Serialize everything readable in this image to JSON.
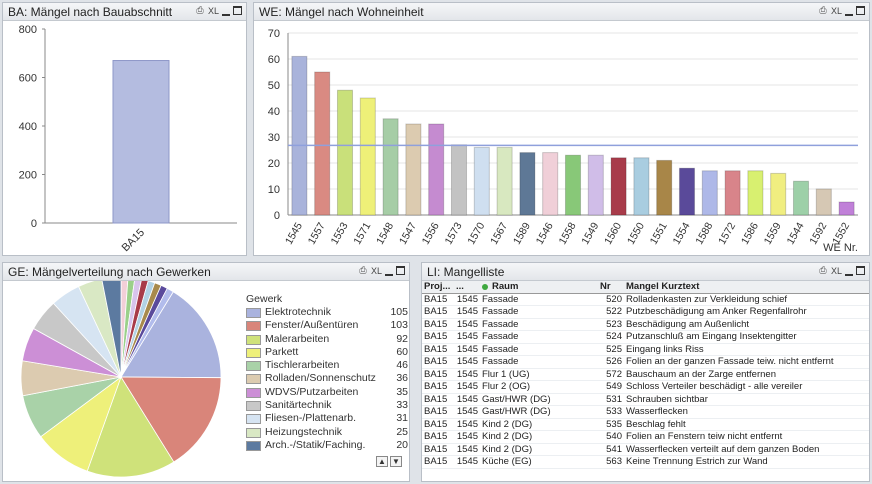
{
  "panels": {
    "ba": {
      "title": "BA: Mängel nach Bauabschnitt",
      "xl": "XL"
    },
    "we": {
      "title": "WE: Mängel nach Wohneinheit",
      "xl": "XL"
    },
    "ge": {
      "title": "GE: Mängelverteilung nach Gewerken",
      "xl": "XL"
    },
    "li": {
      "title": "LI: Mangelliste",
      "xl": "XL"
    }
  },
  "colors": {
    "bar_fill": "#b4bce0",
    "bar_stroke": "#8e97c8",
    "ref_line": "#8fa0dc",
    "grid": "#e4e4e4"
  },
  "chart_data": [
    {
      "type": "bar",
      "categories": [
        "BA15"
      ],
      "values": [
        670
      ],
      "ylim": [
        0,
        800
      ],
      "yticks": [
        0,
        200,
        400,
        600,
        800
      ]
    },
    {
      "type": "bar",
      "xlabel": "WE Nr.",
      "categories": [
        "1545",
        "1557",
        "1553",
        "1571",
        "1548",
        "1547",
        "1556",
        "1573",
        "1570",
        "1567",
        "1589",
        "1546",
        "1558",
        "1549",
        "1560",
        "1550",
        "1551",
        "1554",
        "1588",
        "1572",
        "1586",
        "1559",
        "1544",
        "1592",
        "1552"
      ],
      "values": [
        61,
        55,
        48,
        45,
        37,
        35,
        35,
        27,
        26,
        26,
        24,
        24,
        23,
        23,
        22,
        22,
        21,
        18,
        17,
        17,
        17,
        16,
        13,
        10,
        5
      ],
      "colors": [
        "#a9b3db",
        "#d98a82",
        "#c9e07a",
        "#eef078",
        "#a6cda6",
        "#dccbb0",
        "#c58bd0",
        "#c3c3c3",
        "#cfdff0",
        "#d8e8c0",
        "#5e7896",
        "#f0cfd8",
        "#88c878",
        "#d0bde8",
        "#a83b4a",
        "#a9cde0",
        "#a88648",
        "#5a4a9a",
        "#aeb8e8",
        "#d8848a",
        "#d8f070",
        "#f0ee80",
        "#9dd0a8",
        "#d6c8b4",
        "#c080d8"
      ],
      "reference_line": 26.8,
      "ylim": [
        0,
        70
      ],
      "yticks": [
        0,
        10,
        20,
        30,
        40,
        50,
        60,
        70
      ]
    },
    {
      "type": "pie",
      "legend_title": "Gewerk",
      "labels": [
        "Elektrotechnik",
        "Fenster/Außentüren",
        "Malerarbeiten",
        "Parkett",
        "Tischlerarbeiten",
        "Rolladen/Sonnenschutz",
        "WDVS/Putzarbeiten",
        "Sanitärtechnik",
        "Fliesen-/Plattenarb.",
        "Heizungstechnik",
        "Arch.-/Statik/Faching."
      ],
      "values": [
        105,
        103,
        92,
        60,
        46,
        36,
        35,
        33,
        31,
        25,
        20
      ],
      "colors": [
        "#aab3de",
        "#d9857a",
        "#cfe27a",
        "#eef07a",
        "#a9d2a8",
        "#dccbb0",
        "#cc8fd6",
        "#c8c8c8",
        "#d6e4f2",
        "#d9e8c4",
        "#5c7aa0"
      ],
      "other_colors": [
        "#f2cfd8",
        "#9bd08a",
        "#d8c4ec",
        "#a83b48",
        "#b2d2e4",
        "#a88a4c",
        "#5a4a9c",
        "#b2bcec"
      ]
    }
  ],
  "list": {
    "headers": {
      "proj": "Proj...",
      "we": "...",
      "raum": "Raum",
      "nr": "Nr",
      "text": "Mangel Kurztext"
    },
    "rows": [
      {
        "proj": "BA15",
        "we": "1545",
        "raum": "Fassade",
        "nr": "520",
        "text": "Rolladenkasten zur Verkleidung schief"
      },
      {
        "proj": "BA15",
        "we": "1545",
        "raum": "Fassade",
        "nr": "522",
        "text": "Putzbeschädigung am Anker Regenfallrohr"
      },
      {
        "proj": "BA15",
        "we": "1545",
        "raum": "Fassade",
        "nr": "523",
        "text": "Beschädigung am Außenlicht"
      },
      {
        "proj": "BA15",
        "we": "1545",
        "raum": "Fassade",
        "nr": "524",
        "text": "Putzanschluß am Eingang Insektengitter"
      },
      {
        "proj": "BA15",
        "we": "1545",
        "raum": "Fassade",
        "nr": "525",
        "text": "Eingang links Riss"
      },
      {
        "proj": "BA15",
        "we": "1545",
        "raum": "Fassade",
        "nr": "526",
        "text": "Folien an der ganzen Fassade teiw. nicht entfernt"
      },
      {
        "proj": "BA15",
        "we": "1545",
        "raum": "Flur 1 (UG)",
        "nr": "572",
        "text": "Bauschaum an der Zarge entfernen"
      },
      {
        "proj": "BA15",
        "we": "1545",
        "raum": "Flur 2 (OG)",
        "nr": "549",
        "text": "Schloss Verteiler beschädigt - alle vereiler"
      },
      {
        "proj": "BA15",
        "we": "1545",
        "raum": "Gast/HWR (DG)",
        "nr": "531",
        "text": "Schrauben sichtbar"
      },
      {
        "proj": "BA15",
        "we": "1545",
        "raum": "Gast/HWR (DG)",
        "nr": "533",
        "text": "Wasserflecken"
      },
      {
        "proj": "BA15",
        "we": "1545",
        "raum": "Kind 2 (DG)",
        "nr": "535",
        "text": "Beschlag fehlt"
      },
      {
        "proj": "BA15",
        "we": "1545",
        "raum": "Kind 2 (DG)",
        "nr": "540",
        "text": "Folien an Fenstern teiw nicht entfernt"
      },
      {
        "proj": "BA15",
        "we": "1545",
        "raum": "Kind 2 (DG)",
        "nr": "541",
        "text": "Wasserflecken verteilt auf dem ganzen Boden"
      },
      {
        "proj": "BA15",
        "we": "1545",
        "raum": "Küche (EG)",
        "nr": "563",
        "text": "Keine Trennung Estrich zur Wand"
      }
    ]
  }
}
